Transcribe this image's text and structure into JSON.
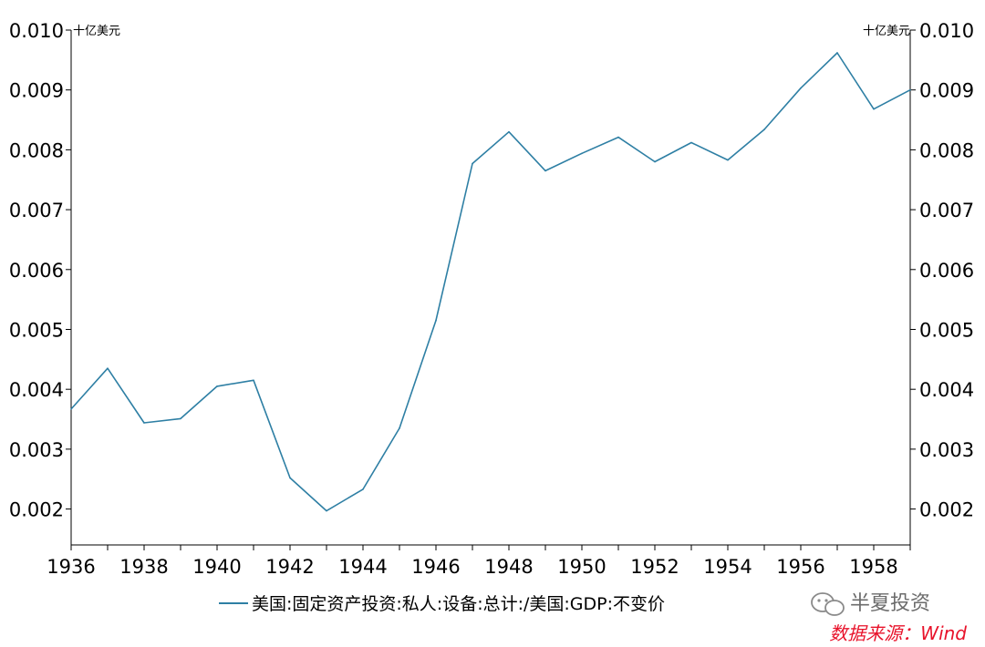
{
  "chart_data": {
    "type": "line",
    "x": [
      1936,
      1937,
      1938,
      1939,
      1940,
      1941,
      1942,
      1943,
      1944,
      1945,
      1946,
      1947,
      1948,
      1949,
      1950,
      1951,
      1952,
      1953,
      1954,
      1955,
      1956,
      1957,
      1958,
      1959
    ],
    "series": [
      {
        "name": "美国:固定资产投资:私人:设备:总计:/美国:GDP:不变价",
        "values": [
          0.00367,
          0.00435,
          0.00344,
          0.00351,
          0.00405,
          0.00415,
          0.00252,
          0.00197,
          0.00233,
          0.00335,
          0.00515,
          0.00777,
          0.0083,
          0.00765,
          0.00794,
          0.00821,
          0.0078,
          0.00812,
          0.00783,
          0.00834,
          0.00903,
          0.00962,
          0.00868,
          0.009
        ]
      }
    ],
    "xlim": [
      1936,
      1959
    ],
    "ylim": [
      0.0014,
      0.01
    ],
    "x_ticks": [
      "1936",
      "1938",
      "1940",
      "1942",
      "1944",
      "1946",
      "1948",
      "1950",
      "1952",
      "1954",
      "1956",
      "1958"
    ],
    "y_ticks": [
      "0.010",
      "0.009",
      "0.008",
      "0.007",
      "0.006",
      "0.005",
      "0.004",
      "0.003",
      "0.002"
    ],
    "y_unit_left": "十亿美元",
    "y_unit_right": "十亿美元",
    "legend_placement": "bottom",
    "grid": false,
    "line_color": "#2e7fa4"
  },
  "source_note": "数据来源：Wind",
  "watermark": "半夏投资",
  "watermark_icon": "wechat-icon",
  "colors": {
    "source": "#e8122a",
    "watermark": "#6b6b6b",
    "axis": "#000000"
  }
}
